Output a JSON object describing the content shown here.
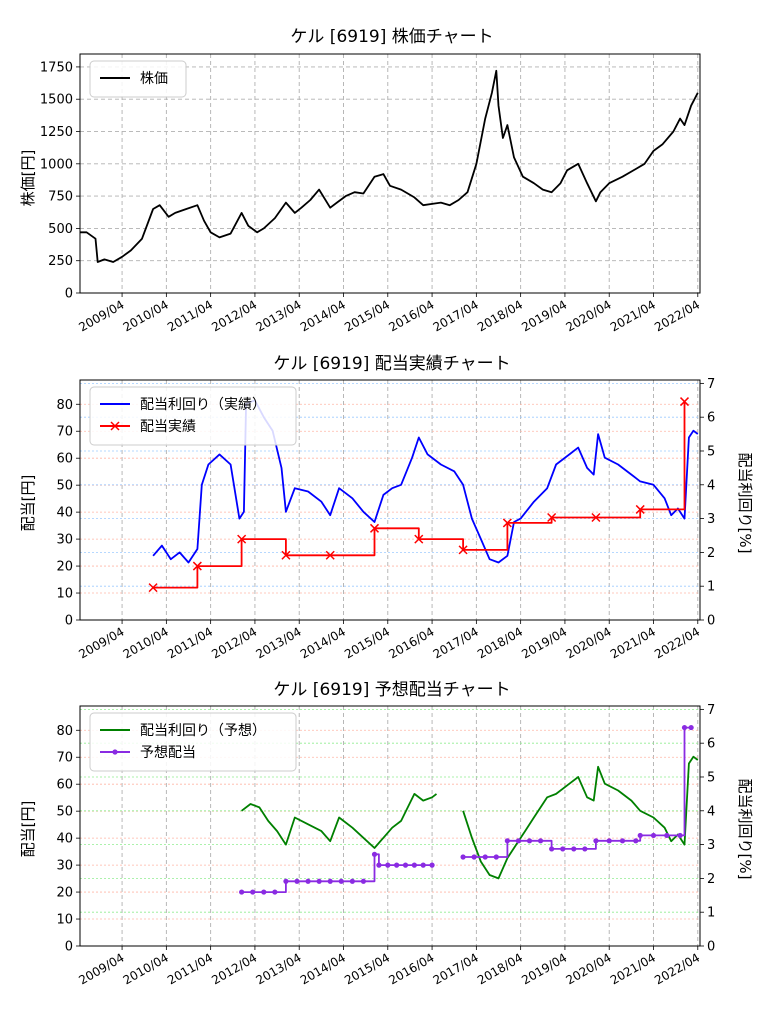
{
  "chart_data": [
    {
      "type": "line",
      "title": "ケル [6919]  株価チャート",
      "ylabel": "株価[円]",
      "xlabel": "",
      "xlim": [
        2008.35,
        2022.35
      ],
      "ylim": [
        0,
        1850
      ],
      "yticks": [
        0,
        250,
        500,
        750,
        1000,
        1250,
        1500,
        1750
      ],
      "grid": true,
      "legend": "top-left",
      "series": [
        {
          "name": "株価",
          "color": "#000000",
          "x": [
            2008.35,
            2008.5,
            2008.7,
            2008.75,
            2008.9,
            2009.1,
            2009.3,
            2009.5,
            2009.75,
            2010.0,
            2010.15,
            2010.35,
            2010.5,
            2010.75,
            2011.0,
            2011.15,
            2011.3,
            2011.5,
            2011.75,
            2012.0,
            2012.15,
            2012.35,
            2012.5,
            2012.75,
            2013.0,
            2013.2,
            2013.35,
            2013.55,
            2013.75,
            2014.0,
            2014.15,
            2014.35,
            2014.55,
            2014.75,
            2015.0,
            2015.2,
            2015.35,
            2015.6,
            2015.9,
            2016.1,
            2016.3,
            2016.5,
            2016.7,
            2016.9,
            2017.1,
            2017.3,
            2017.5,
            2017.65,
            2017.75,
            2017.8,
            2017.9,
            2018.0,
            2018.15,
            2018.35,
            2018.6,
            2018.8,
            2019.0,
            2019.2,
            2019.35,
            2019.6,
            2019.8,
            2020.0,
            2020.1,
            2020.3,
            2020.6,
            2020.9,
            2021.1,
            2021.3,
            2021.5,
            2021.75,
            2021.9,
            2022.0,
            2022.15,
            2022.3
          ],
          "y": [
            470,
            470,
            420,
            240,
            260,
            240,
            280,
            330,
            420,
            650,
            680,
            590,
            620,
            650,
            680,
            560,
            470,
            430,
            460,
            620,
            520,
            470,
            500,
            580,
            700,
            620,
            660,
            720,
            800,
            660,
            700,
            750,
            780,
            770,
            900,
            920,
            830,
            800,
            740,
            680,
            690,
            700,
            680,
            720,
            780,
            1000,
            1350,
            1550,
            1720,
            1450,
            1200,
            1300,
            1050,
            900,
            850,
            800,
            780,
            850,
            950,
            1000,
            850,
            710,
            780,
            850,
            900,
            960,
            1000,
            1100,
            1150,
            1250,
            1350,
            1300,
            1450,
            1550
          ]
        }
      ]
    },
    {
      "type": "line",
      "title": "ケル [6919]  配当実績チャート",
      "ylabel": "配当[円]",
      "y2label": "配当利回り[%]",
      "ylim": [
        0,
        89
      ],
      "y2lim": [
        0,
        7.1
      ],
      "yticks": [
        0,
        10,
        20,
        30,
        40,
        50,
        60,
        70,
        80
      ],
      "y2ticks": [
        0,
        1,
        2,
        3,
        4,
        5,
        6,
        7
      ],
      "grid": true,
      "legend": "top-left",
      "series": [
        {
          "name": "配当利回り（実績）",
          "color": "#0000ff",
          "axis": "right",
          "x": [
            2010.0,
            2010.2,
            2010.4,
            2010.6,
            2010.8,
            2011.0,
            2011.1,
            2011.25,
            2011.5,
            2011.75,
            2011.95,
            2012.05,
            2012.1,
            2012.3,
            2012.5,
            2012.7,
            2012.9,
            2013.0,
            2013.2,
            2013.5,
            2013.8,
            2014.0,
            2014.2,
            2014.5,
            2014.75,
            2015.0,
            2015.2,
            2015.4,
            2015.6,
            2015.85,
            2016.0,
            2016.2,
            2016.5,
            2016.8,
            2017.0,
            2017.2,
            2017.4,
            2017.6,
            2017.8,
            2018.0,
            2018.15,
            2018.3,
            2018.6,
            2018.9,
            2019.1,
            2019.4,
            2019.6,
            2019.8,
            2019.95,
            2020.05,
            2020.2,
            2020.5,
            2020.8,
            2021.0,
            2021.3,
            2021.55,
            2021.7,
            2021.85,
            2022.0,
            2022.1,
            2022.2,
            2022.3
          ],
          "y": [
            1.9,
            2.2,
            1.8,
            2.0,
            1.7,
            2.1,
            4.0,
            4.6,
            4.9,
            4.6,
            3.0,
            3.2,
            6.4,
            6.5,
            6.0,
            5.6,
            4.5,
            3.2,
            3.9,
            3.8,
            3.5,
            3.1,
            3.9,
            3.6,
            3.2,
            2.9,
            3.7,
            3.9,
            4.0,
            4.8,
            5.4,
            4.9,
            4.6,
            4.4,
            4.0,
            3.0,
            2.4,
            1.8,
            1.7,
            1.9,
            2.9,
            3.0,
            3.5,
            3.9,
            4.6,
            4.9,
            5.1,
            4.5,
            4.3,
            5.5,
            4.8,
            4.6,
            4.3,
            4.1,
            4.0,
            3.6,
            3.1,
            3.3,
            3.0,
            5.4,
            5.6,
            5.5
          ]
        },
        {
          "name": "配当実績",
          "color": "#ff0000",
          "axis": "left",
          "x": [
            2010.0,
            2011.0,
            2012.0,
            2013.0,
            2014.0,
            2015.0,
            2016.0,
            2017.0,
            2018.0,
            2019.0,
            2020.0,
            2021.0,
            2022.0
          ],
          "y": [
            12,
            20,
            30,
            24,
            24,
            34,
            30,
            26,
            36,
            38,
            38,
            41,
            81
          ]
        }
      ]
    },
    {
      "type": "line",
      "title": "ケル [6919]  予想配当チャート",
      "ylabel": "配当[円]",
      "y2label": "配当利回り[%]",
      "ylim": [
        0,
        89
      ],
      "y2lim": [
        0,
        7.1
      ],
      "yticks": [
        0,
        10,
        20,
        30,
        40,
        50,
        60,
        70,
        80
      ],
      "y2ticks": [
        0,
        1,
        2,
        3,
        4,
        5,
        6,
        7
      ],
      "grid": true,
      "legend": "top-left",
      "series": [
        {
          "name": "配当利回り（予想）",
          "color": "#008000",
          "axis": "right",
          "segments": [
            {
              "x": [
                2012.0,
                2012.2,
                2012.4,
                2012.6,
                2012.8,
                2013.0,
                2013.2,
                2013.5,
                2013.8,
                2014.0,
                2014.2,
                2014.5,
                2014.75,
                2015.0,
                2015.2,
                2015.4,
                2015.6,
                2015.9,
                2016.1,
                2016.3,
                2016.4
              ],
              "y": [
                4.0,
                4.2,
                4.1,
                3.7,
                3.4,
                3.0,
                3.8,
                3.6,
                3.4,
                3.1,
                3.8,
                3.5,
                3.2,
                2.9,
                3.2,
                3.5,
                3.7,
                4.5,
                4.3,
                4.4,
                4.5
              ]
            },
            {
              "x": [
                2017.0,
                2017.2,
                2017.4,
                2017.6,
                2017.8,
                2018.0,
                2018.2,
                2018.4,
                2018.6,
                2018.9,
                2019.1,
                2019.4,
                2019.6,
                2019.8,
                2019.95,
                2020.05,
                2020.2,
                2020.5,
                2020.8,
                2021.0,
                2021.3,
                2021.55,
                2021.7,
                2021.85,
                2022.0,
                2022.1,
                2022.2,
                2022.3
              ],
              "y": [
                4.0,
                3.2,
                2.5,
                2.1,
                2.0,
                2.6,
                3.0,
                3.4,
                3.8,
                4.4,
                4.5,
                4.8,
                5.0,
                4.4,
                4.3,
                5.3,
                4.8,
                4.6,
                4.3,
                4.0,
                3.8,
                3.5,
                3.1,
                3.3,
                3.0,
                5.4,
                5.6,
                5.5
              ]
            }
          ]
        },
        {
          "name": "予想配当",
          "color": "#8a2be2",
          "axis": "left",
          "segments": [
            {
              "x": [
                2012.0,
                2012.25,
                2012.5,
                2012.75,
                2013.0,
                2013.25,
                2013.5,
                2013.75,
                2014.0,
                2014.25,
                2014.5,
                2014.75,
                2015.0,
                2015.1,
                2015.3,
                2015.5,
                2015.7,
                2015.9,
                2016.1,
                2016.3
              ],
              "y": [
                20,
                20,
                20,
                20,
                24,
                24,
                24,
                24,
                24,
                24,
                24,
                24,
                34,
                30,
                30,
                30,
                30,
                30,
                30,
                30
              ]
            },
            {
              "x": [
                2017.0,
                2017.25,
                2017.5,
                2017.75,
                2018.0,
                2018.25,
                2018.5,
                2018.75,
                2019.0,
                2019.25,
                2019.5,
                2019.75,
                2020.0,
                2020.3,
                2020.6,
                2020.9,
                2021.0,
                2021.3,
                2021.6,
                2021.9,
                2022.0,
                2022.15
              ],
              "y": [
                33,
                33,
                33,
                33,
                39,
                39,
                39,
                39,
                36,
                36,
                36,
                36,
                39,
                39,
                39,
                39,
                41,
                41,
                41,
                41,
                81,
                81
              ]
            }
          ]
        }
      ]
    }
  ],
  "xticks": [
    {
      "x": 2009.3,
      "label": "2009/04"
    },
    {
      "x": 2010.3,
      "label": "2010/04"
    },
    {
      "x": 2011.3,
      "label": "2011/04"
    },
    {
      "x": 2012.3,
      "label": "2012/04"
    },
    {
      "x": 2013.3,
      "label": "2013/04"
    },
    {
      "x": 2014.3,
      "label": "2014/04"
    },
    {
      "x": 2015.3,
      "label": "2015/04"
    },
    {
      "x": 2016.3,
      "label": "2016/04"
    },
    {
      "x": 2017.3,
      "label": "2017/04"
    },
    {
      "x": 2018.3,
      "label": "2018/04"
    },
    {
      "x": 2019.3,
      "label": "2019/04"
    },
    {
      "x": 2020.3,
      "label": "2020/04"
    },
    {
      "x": 2021.3,
      "label": "2021/04"
    },
    {
      "x": 2022.3,
      "label": "2022/04"
    }
  ]
}
